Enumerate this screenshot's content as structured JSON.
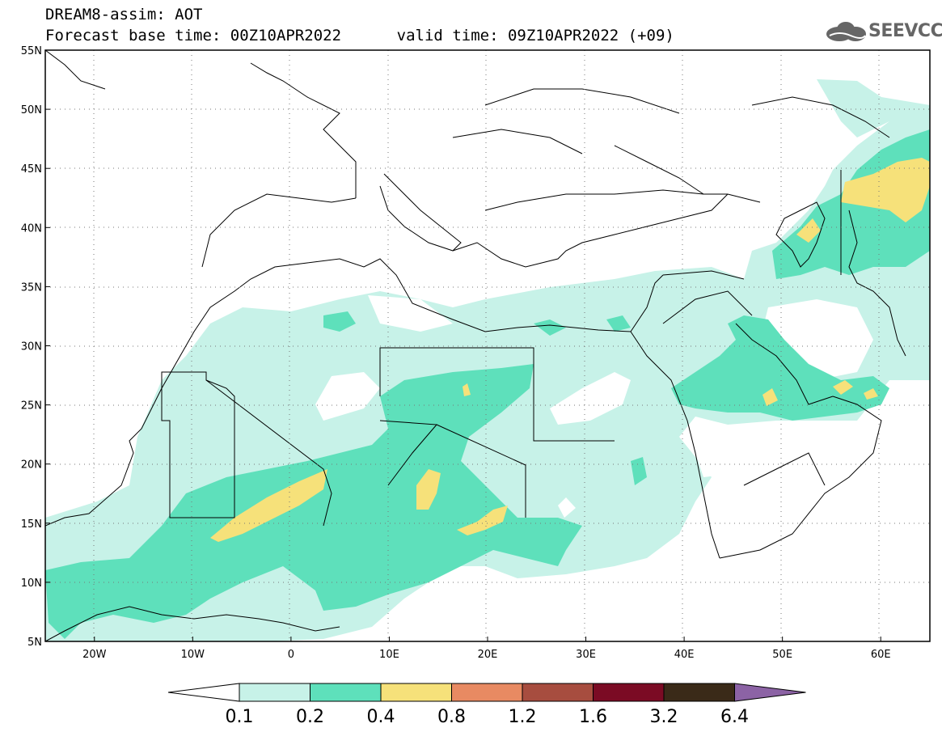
{
  "title": {
    "line1": "DREAM8-assim: AOT",
    "line2": "Forecast base time: 00Z10APR2022      valid time: 09Z10APR2022 (+09)"
  },
  "logo": {
    "text": "SEEVCCC"
  },
  "map": {
    "lon_ticks": [
      {
        "value": -20,
        "label": "20W"
      },
      {
        "value": -10,
        "label": "10W"
      },
      {
        "value": 0,
        "label": "0"
      },
      {
        "value": 10,
        "label": "10E"
      },
      {
        "value": 20,
        "label": "20E"
      },
      {
        "value": 30,
        "label": "30E"
      },
      {
        "value": 40,
        "label": "40E"
      },
      {
        "value": 50,
        "label": "50E"
      },
      {
        "value": 60,
        "label": "60E"
      }
    ],
    "lat_ticks": [
      {
        "value": 55,
        "label": "55N"
      },
      {
        "value": 50,
        "label": "50N"
      },
      {
        "value": 45,
        "label": "45N"
      },
      {
        "value": 40,
        "label": "40N"
      },
      {
        "value": 35,
        "label": "35N"
      },
      {
        "value": 30,
        "label": "30N"
      },
      {
        "value": 25,
        "label": "25N"
      },
      {
        "value": 20,
        "label": "20N"
      },
      {
        "value": 15,
        "label": "15N"
      },
      {
        "value": 10,
        "label": "10N"
      },
      {
        "value": 5,
        "label": "5N"
      }
    ],
    "lon_range": [
      -25,
      65
    ],
    "lat_range": [
      5,
      55
    ],
    "grid": "dotted"
  },
  "colorbar": {
    "levels": [
      "0.1",
      "0.2",
      "0.4",
      "0.8",
      "1.2",
      "1.6",
      "3.2",
      "6.4"
    ],
    "colors": [
      "#ffffff",
      "#c7f2e8",
      "#5ee0bb",
      "#f6e17a",
      "#e88a62",
      "#a74d3f",
      "#7b0b24",
      "#3a2a18",
      "#8c63a5"
    ]
  }
}
